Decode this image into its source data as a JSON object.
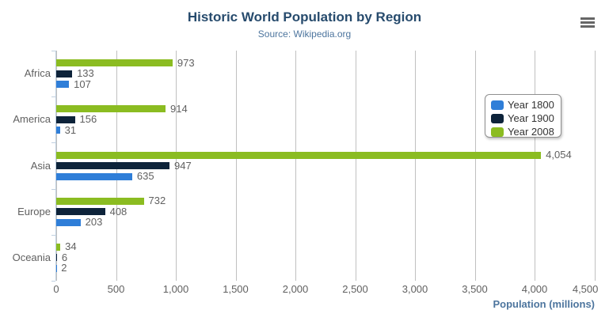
{
  "chart_data": {
    "type": "bar",
    "orientation": "horizontal",
    "title": "Historic World Population by Region",
    "subtitle": "Source: Wikipedia.org",
    "categories": [
      "Africa",
      "America",
      "Asia",
      "Europe",
      "Oceania"
    ],
    "series": [
      {
        "name": "Year 1800",
        "color": "#2f7ed8",
        "values": [
          107,
          31,
          635,
          203,
          2
        ]
      },
      {
        "name": "Year 1900",
        "color": "#0d233a",
        "values": [
          133,
          156,
          947,
          408,
          6
        ]
      },
      {
        "name": "Year 2008",
        "color": "#8bbc21",
        "values": [
          973,
          914,
          4054,
          732,
          34
        ]
      }
    ],
    "data_label_format": "thousands-comma",
    "xlabel": "Population (millions)",
    "xlim": [
      0,
      4500
    ],
    "x_ticks": [
      0,
      500,
      1000,
      1500,
      2000,
      2500,
      3000,
      3500,
      4000,
      4500
    ],
    "x_tick_labels": [
      "0",
      "500",
      "1,000",
      "1,500",
      "2,000",
      "2,500",
      "3,000",
      "3,500",
      "4,000",
      "4,500"
    ],
    "grid": true,
    "legend_position": "right"
  },
  "toolbar": {
    "export_menu_icon": "hamburger-menu-icon"
  },
  "colors": {
    "background": "#ffffff",
    "title": "#274b6d",
    "subtitle": "#4d759e",
    "axis_label": "#606060",
    "data_label": "#606060",
    "grid_line": "#C0C0C0",
    "category_axis_line": "#C0D0E0",
    "legend_border": "#909090",
    "legend_text": "#333333",
    "menu_icon": "#666666"
  }
}
